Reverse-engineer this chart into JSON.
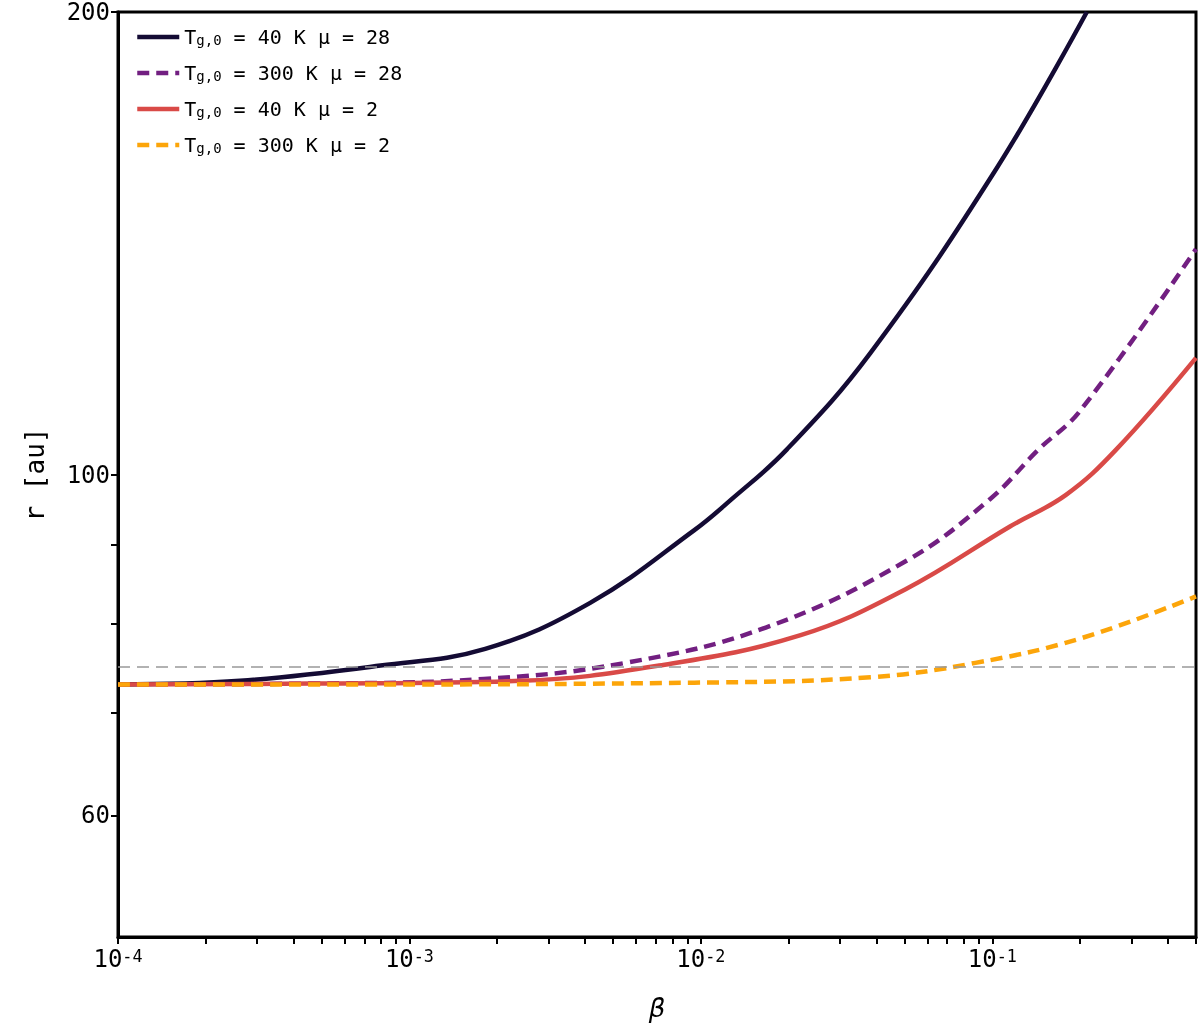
{
  "chart_data": {
    "type": "line",
    "xlabel": "β",
    "ylabel": "r [au]",
    "log": "xy",
    "xlim": [
      0.0001,
      0.5
    ],
    "ylim": [
      50,
      200
    ],
    "xticks": [
      {
        "value": 0.0001,
        "label": "10$^{-4}$"
      },
      {
        "value": 0.0002,
        "label": null
      },
      {
        "value": 0.0003,
        "label": null
      },
      {
        "value": 0.0004,
        "label": null
      },
      {
        "value": 0.0005,
        "label": null
      },
      {
        "value": 0.0006,
        "label": null
      },
      {
        "value": 0.0007,
        "label": null
      },
      {
        "value": 0.0008,
        "label": null
      },
      {
        "value": 0.0009,
        "label": null
      },
      {
        "value": 0.001,
        "label": "10$^{-3}$"
      },
      {
        "value": 0.002,
        "label": null
      },
      {
        "value": 0.003,
        "label": null
      },
      {
        "value": 0.004,
        "label": null
      },
      {
        "value": 0.005,
        "label": null
      },
      {
        "value": 0.006,
        "label": null
      },
      {
        "value": 0.007,
        "label": null
      },
      {
        "value": 0.008,
        "label": null
      },
      {
        "value": 0.009,
        "label": null
      },
      {
        "value": 0.01,
        "label": "10$^{-2}$"
      },
      {
        "value": 0.02,
        "label": null
      },
      {
        "value": 0.03,
        "label": null
      },
      {
        "value": 0.04,
        "label": null
      },
      {
        "value": 0.05,
        "label": null
      },
      {
        "value": 0.06,
        "label": null
      },
      {
        "value": 0.07,
        "label": null
      },
      {
        "value": 0.08,
        "label": null
      },
      {
        "value": 0.09,
        "label": null
      },
      {
        "value": 0.1,
        "label": "10$^{-1}$"
      },
      {
        "value": 0.2,
        "label": null
      },
      {
        "value": 0.3,
        "label": null
      },
      {
        "value": 0.4,
        "label": null
      },
      {
        "value": 0.5,
        "label": null
      }
    ],
    "yticks": [
      60,
      {
        "value": 70,
        "label": null
      },
      {
        "value": 80,
        "label": null
      },
      {
        "value": 90,
        "label": null
      },
      100,
      200
    ],
    "grid": false,
    "legend": "top left",
    "marker": "none",
    "ref_lines": [
      {
        "axis": "y",
        "value": 75,
        "color": "#999999",
        "line_style": "dashed"
      }
    ],
    "series": [
      {
        "name": "T$_{g,0}$ = 40 K μ = 28",
        "color": "#140b34",
        "line_style": "solid",
        "x": [
          0.0001,
          0.000262,
          0.000796,
          0.00182,
          0.00417,
          0.0095,
          0.0127,
          0.0197,
          0.0382,
          0.103,
          0.211
        ],
        "values": [
          73.0,
          73.4,
          75.1,
          77.0,
          82.5,
          92.0,
          96.3,
          103.8,
          120,
          158,
          200
        ]
      },
      {
        "name": "T$_{g,0}$ = 300 K μ = 28",
        "color": "#721f81",
        "line_style": "dashed",
        "x": [
          0.0001,
          0.00046,
          0.0018,
          0.0055,
          0.0167,
          0.0504,
          0.0977,
          0.144,
          0.2,
          0.5
        ],
        "values": [
          73.0,
          73.1,
          73.6,
          75.4,
          79.5,
          87.8,
          96.3,
          103.8,
          110,
          140.2
        ]
      },
      {
        "name": "T$_{g,0}$ = 40 K μ = 2",
        "color": "#d94a47",
        "line_style": "solid",
        "x": [
          0.0001,
          0.00046,
          0.0024,
          0.0072,
          0.022,
          0.0504,
          0.115,
          0.179,
          0.266,
          0.5
        ],
        "values": [
          73.0,
          73.1,
          73.4,
          75.1,
          78.6,
          84.2,
          92.5,
          97,
          103.8,
          119.1
        ]
      },
      {
        "name": "T$_{g,0}$ = 300 K μ = 2",
        "color": "#fca50a",
        "line_style": "dashed",
        "x": [
          0.0001,
          0.00046,
          0.0095,
          0.0382,
          0.0875,
          0.2,
          0.5
        ],
        "values": [
          73.0,
          73.0,
          73.2,
          73.8,
          75.4,
          78.2,
          83.3
        ]
      }
    ]
  }
}
